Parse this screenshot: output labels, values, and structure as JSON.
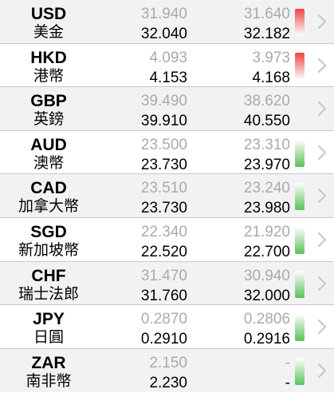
{
  "rates": [
    {
      "code": "USD",
      "name": "美金",
      "buy_cash": "31.940",
      "buy_spot": "32.040",
      "sell_cash": "31.640",
      "sell_spot": "32.182",
      "trend": "up",
      "trend_color": "#ee4444"
    },
    {
      "code": "HKD",
      "name": "港幣",
      "buy_cash": "4.093",
      "buy_spot": "4.153",
      "sell_cash": "3.973",
      "sell_spot": "4.168",
      "trend": "up",
      "trend_color": "#ee4444"
    },
    {
      "code": "GBP",
      "name": "英鎊",
      "buy_cash": "39.490",
      "buy_spot": "39.910",
      "sell_cash": "38.620",
      "sell_spot": "40.550",
      "trend": "none",
      "trend_color": ""
    },
    {
      "code": "AUD",
      "name": "澳幣",
      "buy_cash": "23.500",
      "buy_spot": "23.730",
      "sell_cash": "23.310",
      "sell_spot": "23.970",
      "trend": "down",
      "trend_color": "#5cc15c"
    },
    {
      "code": "CAD",
      "name": "加拿大幣",
      "buy_cash": "23.510",
      "buy_spot": "23.730",
      "sell_cash": "23.240",
      "sell_spot": "23.980",
      "trend": "down",
      "trend_color": "#5cc15c"
    },
    {
      "code": "SGD",
      "name": "新加坡幣",
      "buy_cash": "22.340",
      "buy_spot": "22.520",
      "sell_cash": "21.920",
      "sell_spot": "22.700",
      "trend": "down",
      "trend_color": "#5cc15c"
    },
    {
      "code": "CHF",
      "name": "瑞士法郎",
      "buy_cash": "31.470",
      "buy_spot": "31.760",
      "sell_cash": "30.940",
      "sell_spot": "32.000",
      "trend": "down",
      "trend_color": "#5cc15c"
    },
    {
      "code": "JPY",
      "name": "日圓",
      "buy_cash": "0.2870",
      "buy_spot": "0.2910",
      "sell_cash": "0.2806",
      "sell_spot": "0.2916",
      "trend": "down",
      "trend_color": "#5cc15c"
    },
    {
      "code": "ZAR",
      "name": "南非幣",
      "buy_cash": "2.150",
      "buy_spot": "2.230",
      "sell_cash": "-",
      "sell_spot": "-",
      "trend": "down",
      "trend_color": "#5cc15c"
    }
  ]
}
